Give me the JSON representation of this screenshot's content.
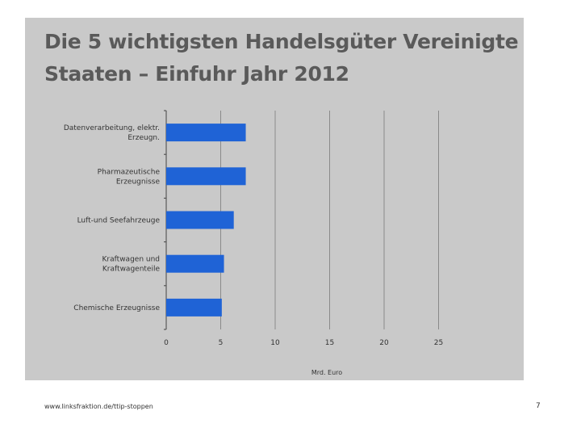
{
  "slide": {
    "title_line1": "Die 5 wichtigsten Handelsgüter Vereinigte",
    "title_line2": "Staaten – Einfuhr  Jahr 2012",
    "footer_url": "www.linksfraktion.de/ttip-stoppen",
    "page_number": "7"
  },
  "colors": {
    "bar": "#1f63d6",
    "panel": "#c9c9c9",
    "grid": "#8a8a8a"
  },
  "chart_data": {
    "type": "bar",
    "orientation": "horizontal",
    "title": "Die 5 wichtigsten Handelsgüter Vereinigte Staaten – Einfuhr  Jahr 2012",
    "categories": [
      [
        "Datenverarbeitung, elektr.",
        "Erzeugn."
      ],
      [
        "Pharmazeutische",
        "Erzeugnisse"
      ],
      [
        "Luft-und Seefahrzeuge"
      ],
      [
        "Kraftwagen und",
        "Kraftwagenteile"
      ],
      [
        "Chemische Erzeugnisse"
      ]
    ],
    "values": [
      7.3,
      7.3,
      6.2,
      5.3,
      5.1
    ],
    "xlabel": "Mrd. Euro",
    "xlim": [
      0,
      25
    ],
    "xticks": [
      "0",
      "5",
      "10",
      "15",
      "20",
      "25"
    ],
    "grid": true
  }
}
